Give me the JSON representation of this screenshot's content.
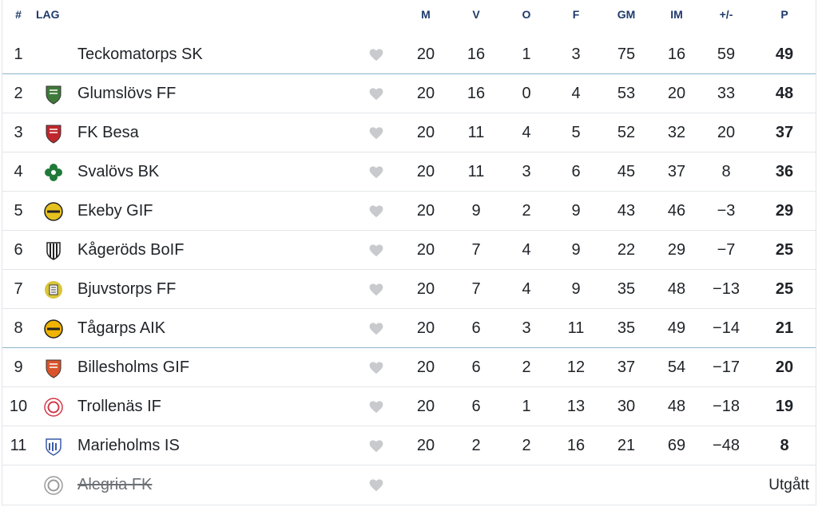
{
  "columns": {
    "pos": "#",
    "team": "LAG",
    "played": "M",
    "won": "V",
    "drawn": "O",
    "lost": "F",
    "goals_for": "GM",
    "goals_against": "IM",
    "goal_diff": "+/-",
    "points": "P"
  },
  "teams": [
    {
      "pos": "1",
      "name": "Teckomatorps SK",
      "m": "20",
      "v": "16",
      "o": "1",
      "f": "3",
      "gm": "75",
      "im": "16",
      "gd": "59",
      "p": "49",
      "badge": "none",
      "badge_color": ""
    },
    {
      "pos": "2",
      "name": "Glumslövs FF",
      "m": "20",
      "v": "16",
      "o": "0",
      "f": "4",
      "gm": "53",
      "im": "20",
      "gd": "33",
      "p": "48",
      "badge": "shield-icon",
      "badge_color": "#3f7a3a"
    },
    {
      "pos": "3",
      "name": "FK Besa",
      "m": "20",
      "v": "11",
      "o": "4",
      "f": "5",
      "gm": "52",
      "im": "32",
      "gd": "20",
      "p": "37",
      "badge": "shield-icon",
      "badge_color": "#c0272d"
    },
    {
      "pos": "4",
      "name": "Svalövs BK",
      "m": "20",
      "v": "11",
      "o": "3",
      "f": "6",
      "gm": "45",
      "im": "37",
      "gd": "8",
      "p": "36",
      "badge": "clover-icon",
      "badge_color": "#1f7a3a"
    },
    {
      "pos": "5",
      "name": "Ekeby GIF",
      "m": "20",
      "v": "9",
      "o": "2",
      "f": "9",
      "gm": "43",
      "im": "46",
      "gd": "−3",
      "p": "29",
      "badge": "round-icon",
      "badge_color": "#e6c21f"
    },
    {
      "pos": "6",
      "name": "Kågeröds BoIF",
      "m": "20",
      "v": "7",
      "o": "4",
      "f": "9",
      "gm": "22",
      "im": "29",
      "gd": "−7",
      "p": "25",
      "badge": "stripes-icon",
      "badge_color": "#222222"
    },
    {
      "pos": "7",
      "name": "Bjuvstorps FF",
      "m": "20",
      "v": "7",
      "o": "4",
      "f": "9",
      "gm": "35",
      "im": "48",
      "gd": "−13",
      "p": "25",
      "badge": "wreath-icon",
      "badge_color": "#d8c53a"
    },
    {
      "pos": "8",
      "name": "Tågarps AIK",
      "m": "20",
      "v": "6",
      "o": "3",
      "f": "11",
      "gm": "35",
      "im": "49",
      "gd": "−14",
      "p": "21",
      "badge": "round-icon",
      "badge_color": "#f0b400"
    },
    {
      "pos": "9",
      "name": "Billesholms GIF",
      "m": "20",
      "v": "6",
      "o": "2",
      "f": "12",
      "gm": "37",
      "im": "54",
      "gd": "−17",
      "p": "20",
      "badge": "shield-icon",
      "badge_color": "#d9542b"
    },
    {
      "pos": "10",
      "name": "Trollenäs IF",
      "m": "20",
      "v": "6",
      "o": "1",
      "f": "13",
      "gm": "30",
      "im": "48",
      "gd": "−18",
      "p": "19",
      "badge": "ring-icon",
      "badge_color": "#d23a4a"
    },
    {
      "pos": "11",
      "name": "Marieholms IS",
      "m": "20",
      "v": "2",
      "o": "2",
      "f": "16",
      "gm": "21",
      "im": "69",
      "gd": "−48",
      "p": "8",
      "badge": "crest-icon",
      "badge_color": "#3a5aa8"
    }
  ],
  "withdrawn": {
    "name": "Alegria FK",
    "status": "Utgått",
    "badge": "ring-icon",
    "badge_color": "#9a9a9a"
  },
  "colors": {
    "header_text": "#1f3a6b",
    "separator": "#e3e5e8",
    "accent_separator": "#8fb4c9",
    "heart": "#c8cacd"
  },
  "accent_after_positions": [
    "1",
    "8"
  ]
}
